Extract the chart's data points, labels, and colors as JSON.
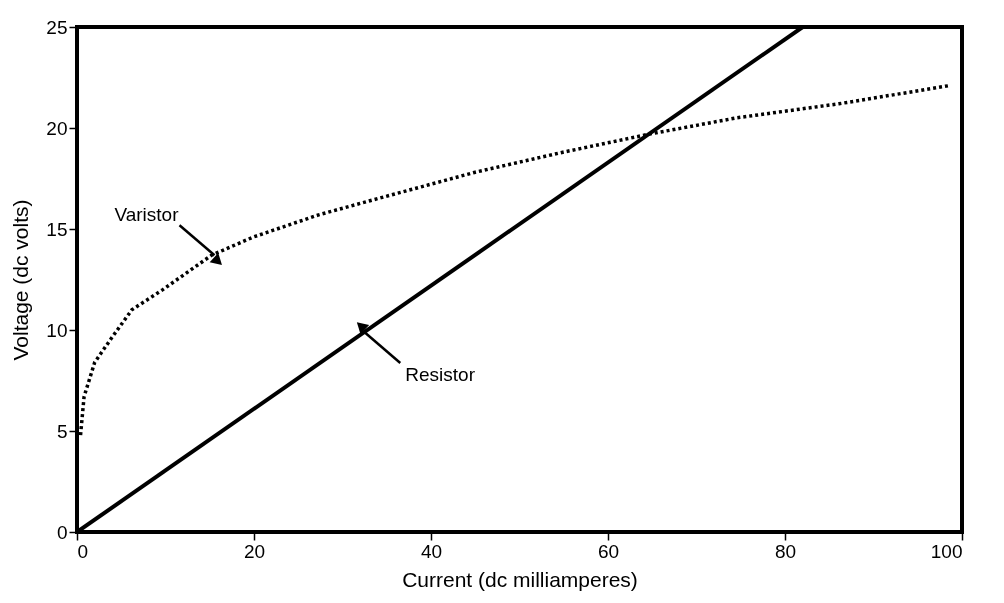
{
  "chart_data": {
    "type": "line",
    "xlabel": "Current  (dc  milliamperes)",
    "ylabel": "Voltage  (dc  volts)",
    "xlim": [
      0,
      100
    ],
    "ylim": [
      0,
      25
    ],
    "xticks": [
      0,
      20,
      40,
      60,
      80,
      100
    ],
    "yticks": [
      0,
      5,
      10,
      15,
      20,
      25
    ],
    "grid": false,
    "series": [
      {
        "color": "#000000",
        "line_style": "dotted",
        "x": [
          0.4,
          0.8,
          2.0,
          3.9,
          6.2,
          9.7,
          15.2,
          19.9,
          27.3,
          33.1,
          39,
          44.9,
          54.9,
          64.7,
          74.5,
          86.1,
          98.6
        ],
        "values": [
          4.8,
          6.7,
          8.4,
          9.6,
          11.0,
          12.0,
          13.7,
          14.6,
          15.7,
          16.4,
          17.1,
          17.8,
          18.8,
          19.7,
          20.5,
          21.2,
          22.1
        ]
      },
      {
        "color": "#000000",
        "line_style": "solid",
        "x": [
          0,
          82
        ],
        "values": [
          0,
          25
        ]
      }
    ],
    "annotations": [
      {
        "text": "Varistor",
        "x": 15.2,
        "y": 13.7
      },
      {
        "text": "Resistor",
        "x": 32.8,
        "y": 9.9
      }
    ]
  }
}
